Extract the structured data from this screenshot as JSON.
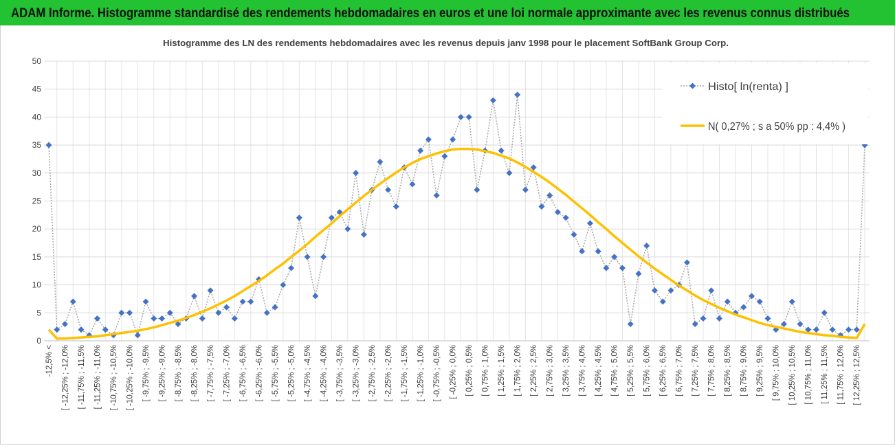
{
  "chart_data": {
    "type": "line",
    "title": "ADAM Informe. Histogramme standardisé des rendements hebdomadaires en euros et une loi normale approximante avec les revenus connus distribués",
    "subtitle": "Histogramme des LN des rendements hebdomadaires avec les revenus depuis janv 1998 pour le placement SoftBank Group Corp.",
    "categories": [
      "-12,5% <",
      null,
      "[ -12,25% ; -12,0%",
      null,
      "[ -11,75% ; -11,5%",
      null,
      "[ -11,25% ; -11,0%",
      null,
      "[ -10,75% ; -10,5%",
      null,
      "[ -10,25% ; -10,0%",
      null,
      "[ -9,75% ; -9,5%",
      null,
      "[ -9,25% ; -9,0%",
      null,
      "[ -8,75% ; -8,5%",
      null,
      "[ -8,25% ; -8,0%",
      null,
      "[ -7,75% ; -7,5%",
      null,
      "[ -7,25% ; -7,0%",
      null,
      "[ -6,75% ; -6,5%",
      null,
      "[ -6,25% ; -6,0%",
      null,
      "[ -5,75% ; -5,5%",
      null,
      "[ -5,25% ; -5,0%",
      null,
      "[ -4,75% ; -4,5%",
      null,
      "[ -4,25% ; -4,0%",
      null,
      "[ -3,75% ; -3,5%",
      null,
      "[ -3,25% ; -3,0%",
      null,
      "[ -2,75% ; -2,5%",
      null,
      "[ -2,25% ; -2,0%",
      null,
      "[ -1,75% ; -1,5%",
      null,
      "[ -1,25% ; -1,0%",
      null,
      "[ -0,75% ; -0,5%",
      null,
      "[ -0,25% ; 0,0%",
      null,
      "[ 0,25% ; 0,5%",
      null,
      "[ 0,75% ; 1,0%",
      null,
      "[ 1,25% ; 1,5%",
      null,
      "[ 1,75% ; 2,0%",
      null,
      "[ 2,25% ; 2,5%",
      null,
      "[ 2,75% ; 3,0%",
      null,
      "[ 3,25% ; 3,5%",
      null,
      "[ 3,75% ; 4,0%",
      null,
      "[ 4,25% ; 4,5%",
      null,
      "[ 4,75% ; 5,0%",
      null,
      "[ 5,25% ; 5,5%",
      null,
      "[ 5,75% ; 6,0%",
      null,
      "[ 6,25% ; 6,5%",
      null,
      "[ 6,75% ; 7,0%",
      null,
      "[ 7,25% ; 7,5%",
      null,
      "[ 7,75% ; 8,0%",
      null,
      "[ 8,25% ; 8,5%",
      null,
      "[ 8,75% ; 9,0%",
      null,
      "[ 9,25% ; 9,5%",
      null,
      "[ 9,75% ; 10,0%",
      null,
      "[ 10,25% ; 10,5%",
      null,
      "[ 10,75% ; 11,0%",
      null,
      "[ 11,25% ; 11,5%",
      null,
      "[ 11,75% ; 12,0%",
      null,
      "[ 12,25% ; 12,5%",
      null
    ],
    "series": [
      {
        "name": "Histo[ ln(renta) ]",
        "color": "#4472c4",
        "line_color": "#a6a6a6",
        "values": [
          35,
          2,
          3,
          7,
          2,
          1,
          4,
          2,
          1,
          5,
          5,
          1,
          7,
          4,
          4,
          5,
          3,
          4,
          8,
          4,
          9,
          5,
          6,
          4,
          7,
          7,
          11,
          5,
          6,
          10,
          13,
          22,
          15,
          8,
          15,
          22,
          23,
          20,
          30,
          19,
          27,
          32,
          27,
          24,
          31,
          28,
          34,
          36,
          26,
          33,
          36,
          40,
          40,
          27,
          34,
          43,
          34,
          30,
          44,
          27,
          31,
          24,
          26,
          23,
          22,
          19,
          16,
          21,
          16,
          13,
          15,
          13,
          3,
          12,
          17,
          9,
          7,
          9,
          10,
          14,
          3,
          4,
          9,
          4,
          7,
          5,
          6,
          8,
          7,
          4,
          2,
          3,
          7,
          3,
          2,
          2,
          5,
          2,
          1,
          2,
          2,
          35
        ]
      },
      {
        "name": "N( 0,27% ; s a 50% pp : 4,4% )",
        "color": "#ffc000",
        "values": [
          2,
          0.4,
          0.4,
          0.5,
          0.6,
          0.7,
          0.8,
          1.0,
          1.2,
          1.4,
          1.6,
          1.8,
          2.1,
          2.4,
          2.8,
          3.2,
          3.6,
          4.1,
          4.6,
          5.2,
          5.8,
          6.5,
          7.2,
          8.0,
          8.9,
          9.8,
          10.7,
          11.7,
          12.8,
          13.8,
          15.0,
          16.1,
          17.3,
          18.6,
          19.8,
          21.0,
          22.3,
          23.5,
          24.7,
          25.9,
          27.0,
          28.1,
          29.1,
          30.1,
          31.0,
          31.8,
          32.5,
          33.0,
          33.5,
          33.9,
          34.2,
          34.3,
          34.3,
          34.2,
          33.9,
          33.6,
          33.1,
          32.6,
          31.9,
          31.1,
          30.2,
          29.3,
          28.3,
          27.2,
          26.1,
          24.9,
          23.7,
          22.5,
          21.2,
          20.0,
          18.7,
          17.5,
          16.3,
          15.1,
          14.0,
          12.9,
          11.9,
          10.9,
          9.9,
          9.0,
          8.1,
          7.3,
          6.6,
          5.9,
          5.3,
          4.7,
          4.2,
          3.7,
          3.2,
          2.8,
          2.5,
          2.2,
          1.9,
          1.6,
          1.4,
          1.2,
          1.0,
          0.9,
          0.7,
          0.6,
          0.5,
          3
        ]
      }
    ],
    "ylim": [
      0,
      50
    ],
    "yticks": [
      0,
      5,
      10,
      15,
      20,
      25,
      30,
      35,
      40,
      45,
      50
    ],
    "grid": true,
    "legend": "top-right"
  }
}
